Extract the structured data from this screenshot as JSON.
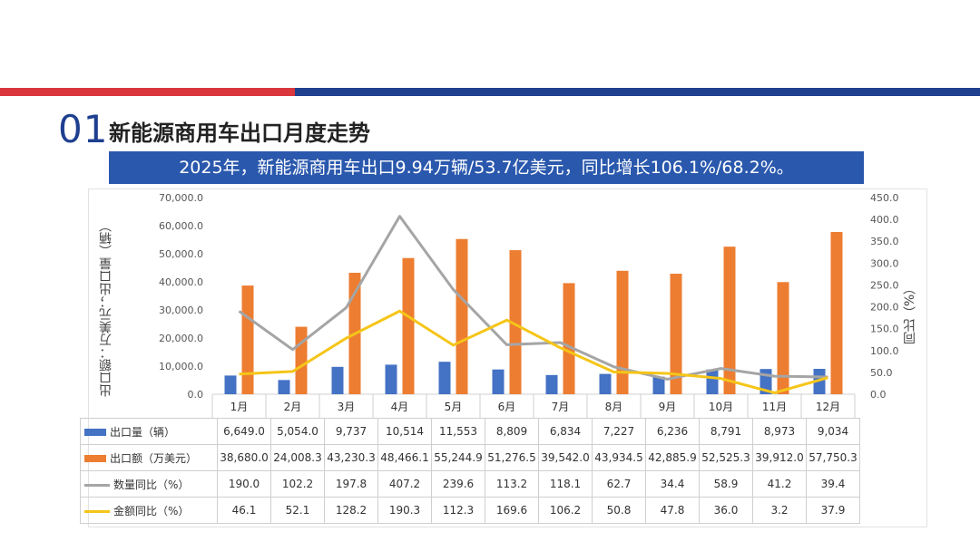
{
  "header": {
    "number": "01",
    "title": "新能源商用车出口月度走势",
    "subtitle": "2025年，新能源商用车出口9.94万辆/53.7亿美元，同比增长106.1%/68.2%。"
  },
  "colors": {
    "volume": "#4472c4",
    "amount": "#ed7d31",
    "volume_yoy": "#a5a5a5",
    "amount_yoy": "#f5c518",
    "header_blue": "#1f3f8f",
    "header_red": "#d9363e",
    "subtitle_bg": "#2a58ad"
  },
  "chart_data": {
    "type": "bar",
    "categories": [
      "1月",
      "2月",
      "3月",
      "4月",
      "5月",
      "6月",
      "7月",
      "8月",
      "9月",
      "10月",
      "11月",
      "12月"
    ],
    "series": [
      {
        "name": "出口量（辆）",
        "kind": "bar",
        "axis": "left",
        "values": [
          6649.0,
          5054.0,
          9737,
          10514,
          11553,
          8809,
          6834,
          7227,
          6236,
          8791,
          8973,
          9034
        ]
      },
      {
        "name": "出口额（万美元）",
        "kind": "bar",
        "axis": "left",
        "values": [
          38680.0,
          24008.3,
          43230.3,
          48466.1,
          55244.9,
          51276.5,
          39542.0,
          43934.5,
          42885.9,
          52525.3,
          39912.0,
          57750.3
        ]
      },
      {
        "name": "数量同比（%）",
        "kind": "line",
        "axis": "right",
        "values": [
          190.0,
          102.2,
          197.8,
          407.2,
          239.6,
          113.2,
          118.1,
          62.7,
          34.4,
          58.9,
          41.2,
          39.4
        ]
      },
      {
        "name": "金额同比（%）",
        "kind": "line",
        "axis": "right",
        "values": [
          46.1,
          52.1,
          128.2,
          190.3,
          112.3,
          169.6,
          106.2,
          50.8,
          47.8,
          36.0,
          3.2,
          37.9
        ]
      }
    ],
    "display_values": [
      [
        "6,649.0",
        "5,054.0",
        "9,737",
        "10,514",
        "11,553",
        "8,809",
        "6,834",
        "7,227",
        "6,236",
        "8,791",
        "8,973",
        "9,034"
      ],
      [
        "38,680.0",
        "24,008.3",
        "43,230.3",
        "48,466.1",
        "55,244.9",
        "51,276.5",
        "39,542.0",
        "43,934.5",
        "42,885.9",
        "52,525.3",
        "39,912.0",
        "57,750.3"
      ],
      [
        "190.0",
        "102.2",
        "197.8",
        "407.2",
        "239.6",
        "113.2",
        "118.1",
        "62.7",
        "34.4",
        "58.9",
        "41.2",
        "39.4"
      ],
      [
        "46.1",
        "52.1",
        "128.2",
        "190.3",
        "112.3",
        "169.6",
        "106.2",
        "50.8",
        "47.8",
        "36.0",
        "3.2",
        "37.9"
      ]
    ],
    "ylabel_left": "出口额：万美元；出口量（辆）",
    "ylabel_right": "同比（%）",
    "y_left_lim": [
      0,
      70000
    ],
    "y_left_ticks": [
      "0.0",
      "10,000.0",
      "20,000.0",
      "30,000.0",
      "40,000.0",
      "50,000.0",
      "60,000.0",
      "70,000.0"
    ],
    "y_right_lim": [
      0,
      450
    ],
    "y_right_ticks": [
      "0.0",
      "50.0",
      "100.0",
      "150.0",
      "200.0",
      "250.0",
      "300.0",
      "350.0",
      "400.0",
      "450.0"
    ],
    "grid": false,
    "legend": "data-table"
  }
}
